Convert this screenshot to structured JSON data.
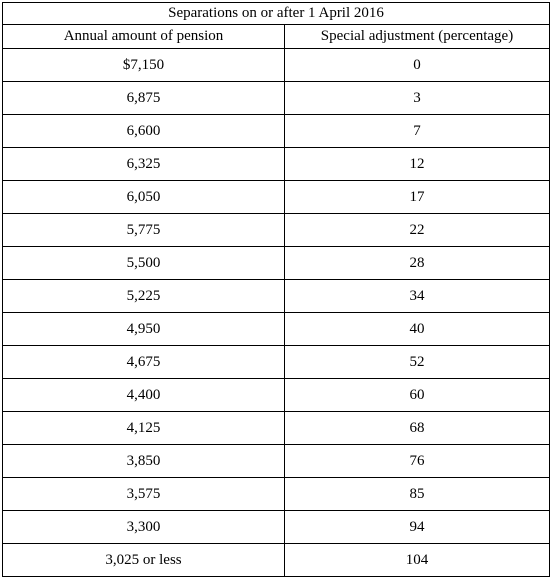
{
  "table": {
    "title": "Separations on or after 1 April 2016",
    "headers": [
      "Annual amount of pension",
      "Special adjustment (percentage)"
    ],
    "rows": [
      [
        "$7,150",
        "0"
      ],
      [
        "6,875",
        "3"
      ],
      [
        "6,600",
        "7"
      ],
      [
        "6,325",
        "12"
      ],
      [
        "6,050",
        "17"
      ],
      [
        "5,775",
        "22"
      ],
      [
        "5,500",
        "28"
      ],
      [
        "5,225",
        "34"
      ],
      [
        "4,950",
        "40"
      ],
      [
        "4,675",
        "52"
      ],
      [
        "4,400",
        "60"
      ],
      [
        "4,125",
        "68"
      ],
      [
        "3,850",
        "76"
      ],
      [
        "3,575",
        "85"
      ],
      [
        "3,300",
        "94"
      ],
      [
        "3,025 or less",
        "104"
      ]
    ]
  }
}
